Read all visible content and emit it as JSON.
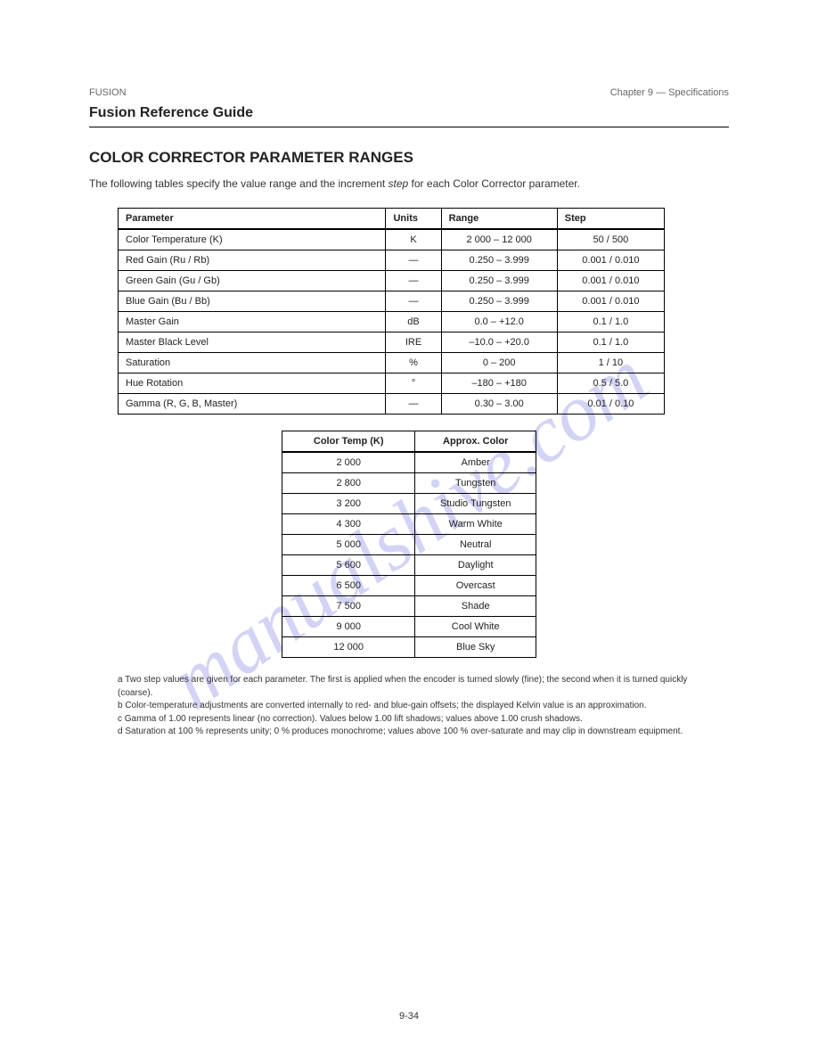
{
  "header": {
    "left": "FUSION",
    "right": "Chapter 9 — Specifications",
    "title": "Fusion Reference Guide"
  },
  "section": {
    "heading": "COLOR CORRECTOR PARAMETER RANGES",
    "intro_1": "The following tables specify the value range and the increment ",
    "intro_2_em": "step",
    "intro_3": " for each Color Corrector parameter."
  },
  "table1": {
    "headers": [
      "Parameter",
      "Units",
      "Range",
      "Step"
    ],
    "rows": [
      [
        "Color Temperature (K)",
        "K",
        "2 000 – 12 000",
        "50 / 500"
      ],
      [
        "Red Gain (Ru / Rb)",
        "—",
        "0.250 – 3.999",
        "0.001 / 0.010"
      ],
      [
        "Green Gain (Gu / Gb)",
        "—",
        "0.250 – 3.999",
        "0.001 / 0.010"
      ],
      [
        "Blue Gain (Bu / Bb)",
        "—",
        "0.250 – 3.999",
        "0.001 / 0.010"
      ],
      [
        "Master Gain",
        "dB",
        "0.0 – +12.0",
        "0.1 / 1.0"
      ],
      [
        "Master Black Level",
        "IRE",
        "–10.0 – +20.0",
        "0.1 / 1.0"
      ],
      [
        "Saturation",
        "%",
        "0 – 200",
        "1 / 10"
      ],
      [
        "Hue Rotation",
        "°",
        "–180 – +180",
        "0.5 / 5.0"
      ],
      [
        "Gamma (R, G, B, Master)",
        "—",
        "0.30 – 3.00",
        "0.01 / 0.10"
      ]
    ]
  },
  "table2": {
    "headers": [
      "Color Temp (K)",
      "Approx. Color"
    ],
    "rows": [
      [
        "2 000",
        "Amber"
      ],
      [
        "2 800",
        "Tungsten"
      ],
      [
        "3 200",
        "Studio Tungsten"
      ],
      [
        "4 300",
        "Warm White"
      ],
      [
        "5 000",
        "Neutral"
      ],
      [
        "5 600",
        "Daylight"
      ],
      [
        "6 500",
        "Overcast"
      ],
      [
        "7 500",
        "Shade"
      ],
      [
        "9 000",
        "Cool White"
      ],
      [
        "12 000",
        "Blue Sky"
      ]
    ]
  },
  "footnotes": {
    "a": "a Two step values are given for each parameter. The first is applied when the encoder is turned slowly (fine); the second when it is turned quickly (coarse).",
    "b": "b Color-temperature adjustments are converted internally to red- and blue-gain offsets; the displayed Kelvin value is an approximation.",
    "c": "c Gamma of 1.00 represents linear (no correction). Values below 1.00 lift shadows; values above 1.00 crush shadows.",
    "d": "d Saturation at 100 % represents unity; 0 % produces monochrome; values above 100 % over-saturate and may clip in downstream equipment."
  },
  "page": {
    "number": "9-34"
  },
  "watermark": "manualshive.com"
}
